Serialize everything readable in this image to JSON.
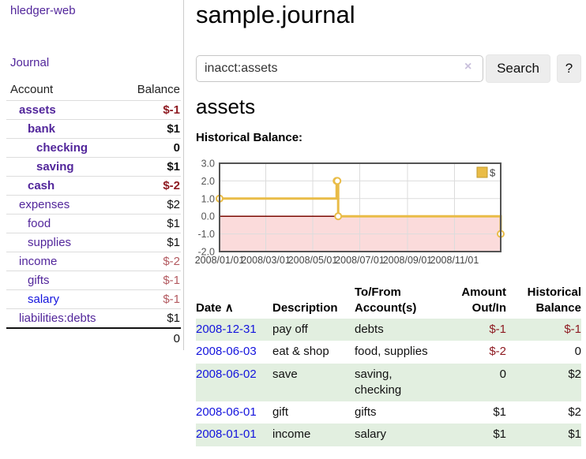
{
  "colors": {
    "link_purple": "#52269b",
    "link_blue": "#1414dd",
    "negative_dark": "#8e1b22",
    "negative_light": "#b35a60",
    "row_green": "#e2efe0",
    "button_bg": "#ededed",
    "chart_line": "#e9bc47",
    "chart_line_edge": "#c19a2e",
    "chart_negative_fill": "#fbdbdb",
    "chart_zero_line": "#7c0a02"
  },
  "icons": {
    "clear_search": "×",
    "sort_ascending": "∧"
  },
  "sidebar": {
    "brand": "hledger-web",
    "journal_link": "Journal",
    "accounts_table": {
      "headers": {
        "account": "Account",
        "balance": "Balance"
      },
      "rows": [
        {
          "account": "assets",
          "depth": 1,
          "selected": true,
          "balance": "$-1",
          "negative": true,
          "unvisited": false
        },
        {
          "account": "bank",
          "depth": 2,
          "selected": true,
          "balance": "$1",
          "negative": false,
          "unvisited": false
        },
        {
          "account": "checking",
          "depth": 3,
          "selected": true,
          "balance": "0",
          "negative": false,
          "unvisited": false
        },
        {
          "account": "saving",
          "depth": 3,
          "selected": true,
          "balance": "$1",
          "negative": false,
          "unvisited": false
        },
        {
          "account": "cash",
          "depth": 2,
          "selected": true,
          "balance": "$-2",
          "negative": true,
          "unvisited": false
        },
        {
          "account": "expenses",
          "depth": 1,
          "selected": false,
          "balance": "$2",
          "negative": false,
          "unvisited": false
        },
        {
          "account": "food",
          "depth": 2,
          "selected": false,
          "balance": "$1",
          "negative": false,
          "unvisited": false
        },
        {
          "account": "supplies",
          "depth": 2,
          "selected": false,
          "balance": "$1",
          "negative": false,
          "unvisited": false
        },
        {
          "account": "income",
          "depth": 1,
          "selected": false,
          "balance": "$-2",
          "negative": true,
          "unvisited": false
        },
        {
          "account": "gifts",
          "depth": 2,
          "selected": false,
          "balance": "$-1",
          "negative": true,
          "unvisited": false
        },
        {
          "account": "salary",
          "depth": 2,
          "selected": false,
          "balance": "$-1",
          "negative": true,
          "unvisited": true
        },
        {
          "account": "liabilities:debts",
          "depth": 1,
          "selected": false,
          "balance": "$1",
          "negative": false,
          "unvisited": false
        }
      ],
      "total": "0"
    }
  },
  "main": {
    "title": "sample.journal",
    "search": {
      "value": "inacct:assets",
      "button_label": "Search",
      "help_label": "?"
    },
    "account_heading": "assets",
    "chart_label": "Historical Balance:",
    "register": {
      "headers": [
        "Date",
        "Description",
        "To/From Account(s)",
        "Amount Out/In",
        "Historical Balance"
      ],
      "rows": [
        {
          "date": "2008-12-31",
          "description": "pay off",
          "accounts": "debts",
          "amount": "$-1",
          "amount_negative": true,
          "balance": "$-1",
          "balance_negative": true
        },
        {
          "date": "2008-06-03",
          "description": "eat & shop",
          "accounts": "food, supplies",
          "amount": "$-2",
          "amount_negative": true,
          "balance": "0",
          "balance_negative": false
        },
        {
          "date": "2008-06-02",
          "description": "save",
          "accounts": "saving, checking",
          "amount": "0",
          "amount_negative": false,
          "balance": "$2",
          "balance_negative": false
        },
        {
          "date": "2008-06-01",
          "description": "gift",
          "accounts": "gifts",
          "amount": "$1",
          "amount_negative": false,
          "balance": "$2",
          "balance_negative": false
        },
        {
          "date": "2008-01-01",
          "description": "income",
          "accounts": "salary",
          "amount": "$1",
          "amount_negative": false,
          "balance": "$1",
          "balance_negative": false
        }
      ]
    }
  },
  "chart_data": {
    "type": "line",
    "title": "Historical Balance",
    "step": true,
    "series": [
      {
        "name": "$",
        "x": [
          "2008-01-01",
          "2008-06-01",
          "2008-06-02",
          "2008-06-03",
          "2008-12-31"
        ],
        "y": [
          1,
          2,
          2,
          0,
          -1
        ]
      }
    ],
    "x_range": [
      "2008-01-01",
      "2008-12-31"
    ],
    "x_ticks": [
      "2008/01/01",
      "2008/03/01",
      "2008/05/01",
      "2008/07/01",
      "2008/09/01",
      "2008/11/01"
    ],
    "y_ticks": [
      3.0,
      2.0,
      1.0,
      0.0,
      -1.0,
      -2.0
    ],
    "ylim": [
      -2,
      3
    ],
    "grid": true,
    "legend_position": "top-right",
    "negative_region_highlighted": true
  }
}
